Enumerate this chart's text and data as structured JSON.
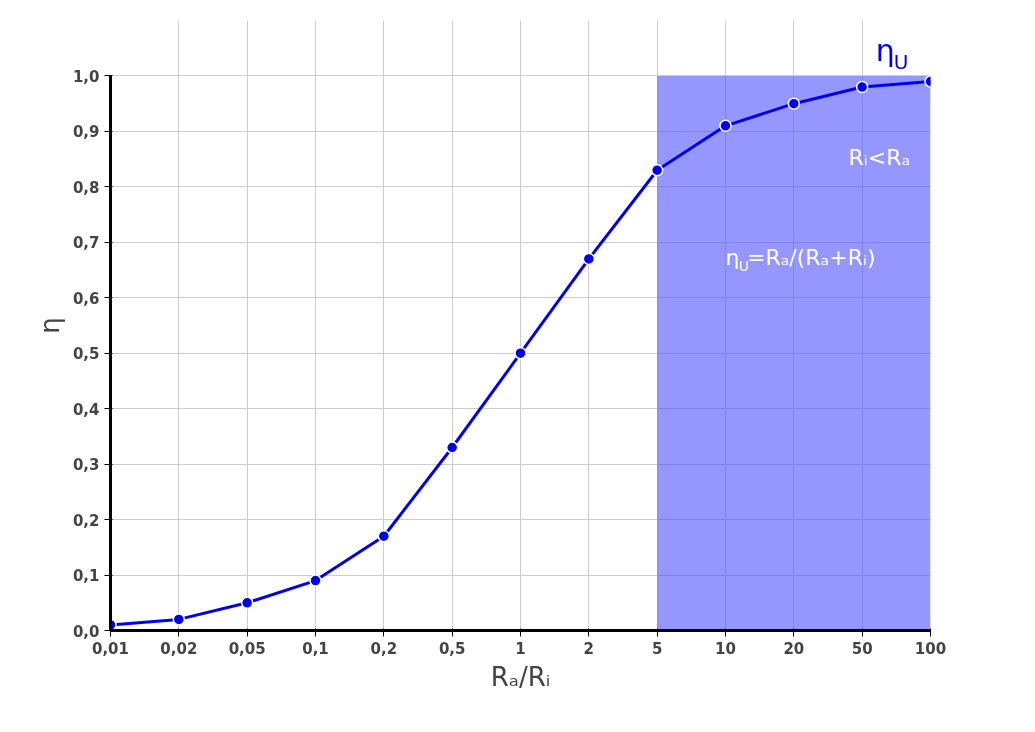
{
  "chart_data": {
    "type": "line",
    "xlabel": "Rₐ/Rᵢ",
    "ylabel": "η",
    "categories": [
      "0,01",
      "0,02",
      "0,05",
      "0,1",
      "0,2",
      "0,5",
      "1",
      "2",
      "5",
      "10",
      "20",
      "50",
      "100"
    ],
    "series": [
      {
        "name": "η$_{U}$",
        "color": "#0000ee",
        "values": [
          0.01,
          0.02,
          0.05,
          0.09,
          0.17,
          0.33,
          0.5,
          0.67,
          0.83,
          0.91,
          0.95,
          0.98,
          0.99
        ]
      }
    ],
    "ylim": [
      0,
      1
    ],
    "yticks": [
      {
        "value": 0,
        "label": "0,0"
      },
      {
        "value": 0.1,
        "label": "0,1"
      },
      {
        "value": 0.2,
        "label": "0,2"
      },
      {
        "value": 0.3,
        "label": "0,3"
      },
      {
        "value": 0.4,
        "label": "0,4"
      },
      {
        "value": 0.5,
        "label": "0,5"
      },
      {
        "value": 0.6,
        "label": "0,6"
      },
      {
        "value": 0.7,
        "label": "0,7"
      },
      {
        "value": 0.8,
        "label": "0,8"
      },
      {
        "value": 0.9,
        "label": "0,9"
      },
      {
        "value": 1,
        "label": "1,0"
      }
    ],
    "bands": [
      {
        "axis": "x",
        "from": "5",
        "to": "100",
        "color": "#5050ff"
      }
    ],
    "annotations": [
      "Rᵢ<Rₐ",
      "η$_{U}$=Rₐ/(Rₐ+Rᵢ)"
    ],
    "grid": true,
    "marker": "circle",
    "line_style": "solid"
  }
}
